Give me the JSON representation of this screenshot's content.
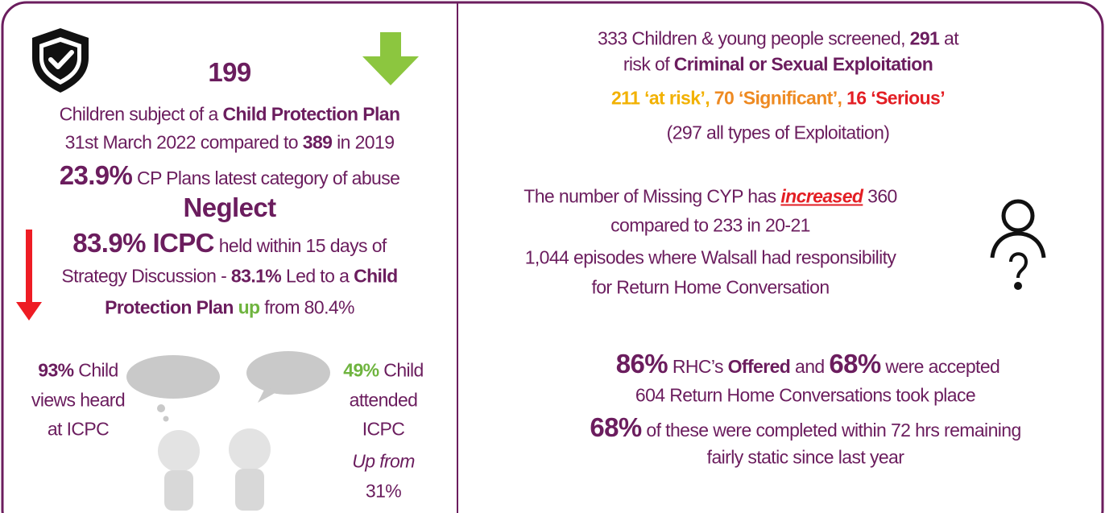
{
  "left": {
    "count": "199",
    "lines": [
      [
        "Children subject of a ",
        "Child Protection Plan"
      ],
      [
        "31st March 2022 compared to ",
        "389",
        " in 2019"
      ],
      [
        "23.9%",
        " CP Plans latest category of abuse"
      ],
      [
        "Neglect"
      ],
      [
        "83.9% ICPC",
        " held within 15 days of"
      ],
      [
        "Strategy Discussion - ",
        "83.1%",
        " Led to a ",
        "Child"
      ],
      [
        "Protection Plan",
        " up",
        " from 80.4%"
      ]
    ],
    "views": [
      [
        "93%",
        " Child"
      ],
      [
        "views heard"
      ],
      [
        "at ICPC"
      ]
    ],
    "attended": [
      [
        "49%",
        " Child"
      ],
      [
        "attended"
      ],
      [
        "ICPC"
      ],
      [
        "Up from"
      ],
      [
        "31%"
      ]
    ]
  },
  "right": {
    "screening": [
      [
        "333 Children & young people screened, ",
        "291",
        " at"
      ],
      [
        "risk of ",
        "Criminal or Sexual Exploitation"
      ],
      [
        "211 ‘at risk’, ",
        "70 ‘Significant’, ",
        "16 ‘Serious’"
      ],
      [
        "(297 all types of Exploitation)"
      ]
    ],
    "missing": [
      [
        "The number of Missing CYP has ",
        "increased",
        " 360"
      ],
      [
        "compared to 233 in 20-21"
      ],
      [
        "1,044 episodes where Walsall had responsibility"
      ],
      [
        "for Return Home Conversation"
      ]
    ],
    "rhc": [
      [
        "86%",
        " RHC’s ",
        "Offered",
        " and ",
        "68%",
        " were accepted"
      ],
      [
        "604 Return Home Conversations took place"
      ],
      [
        "68%",
        " of these were completed within 72 hrs remaining"
      ],
      [
        "fairly static since last year"
      ]
    ]
  }
}
